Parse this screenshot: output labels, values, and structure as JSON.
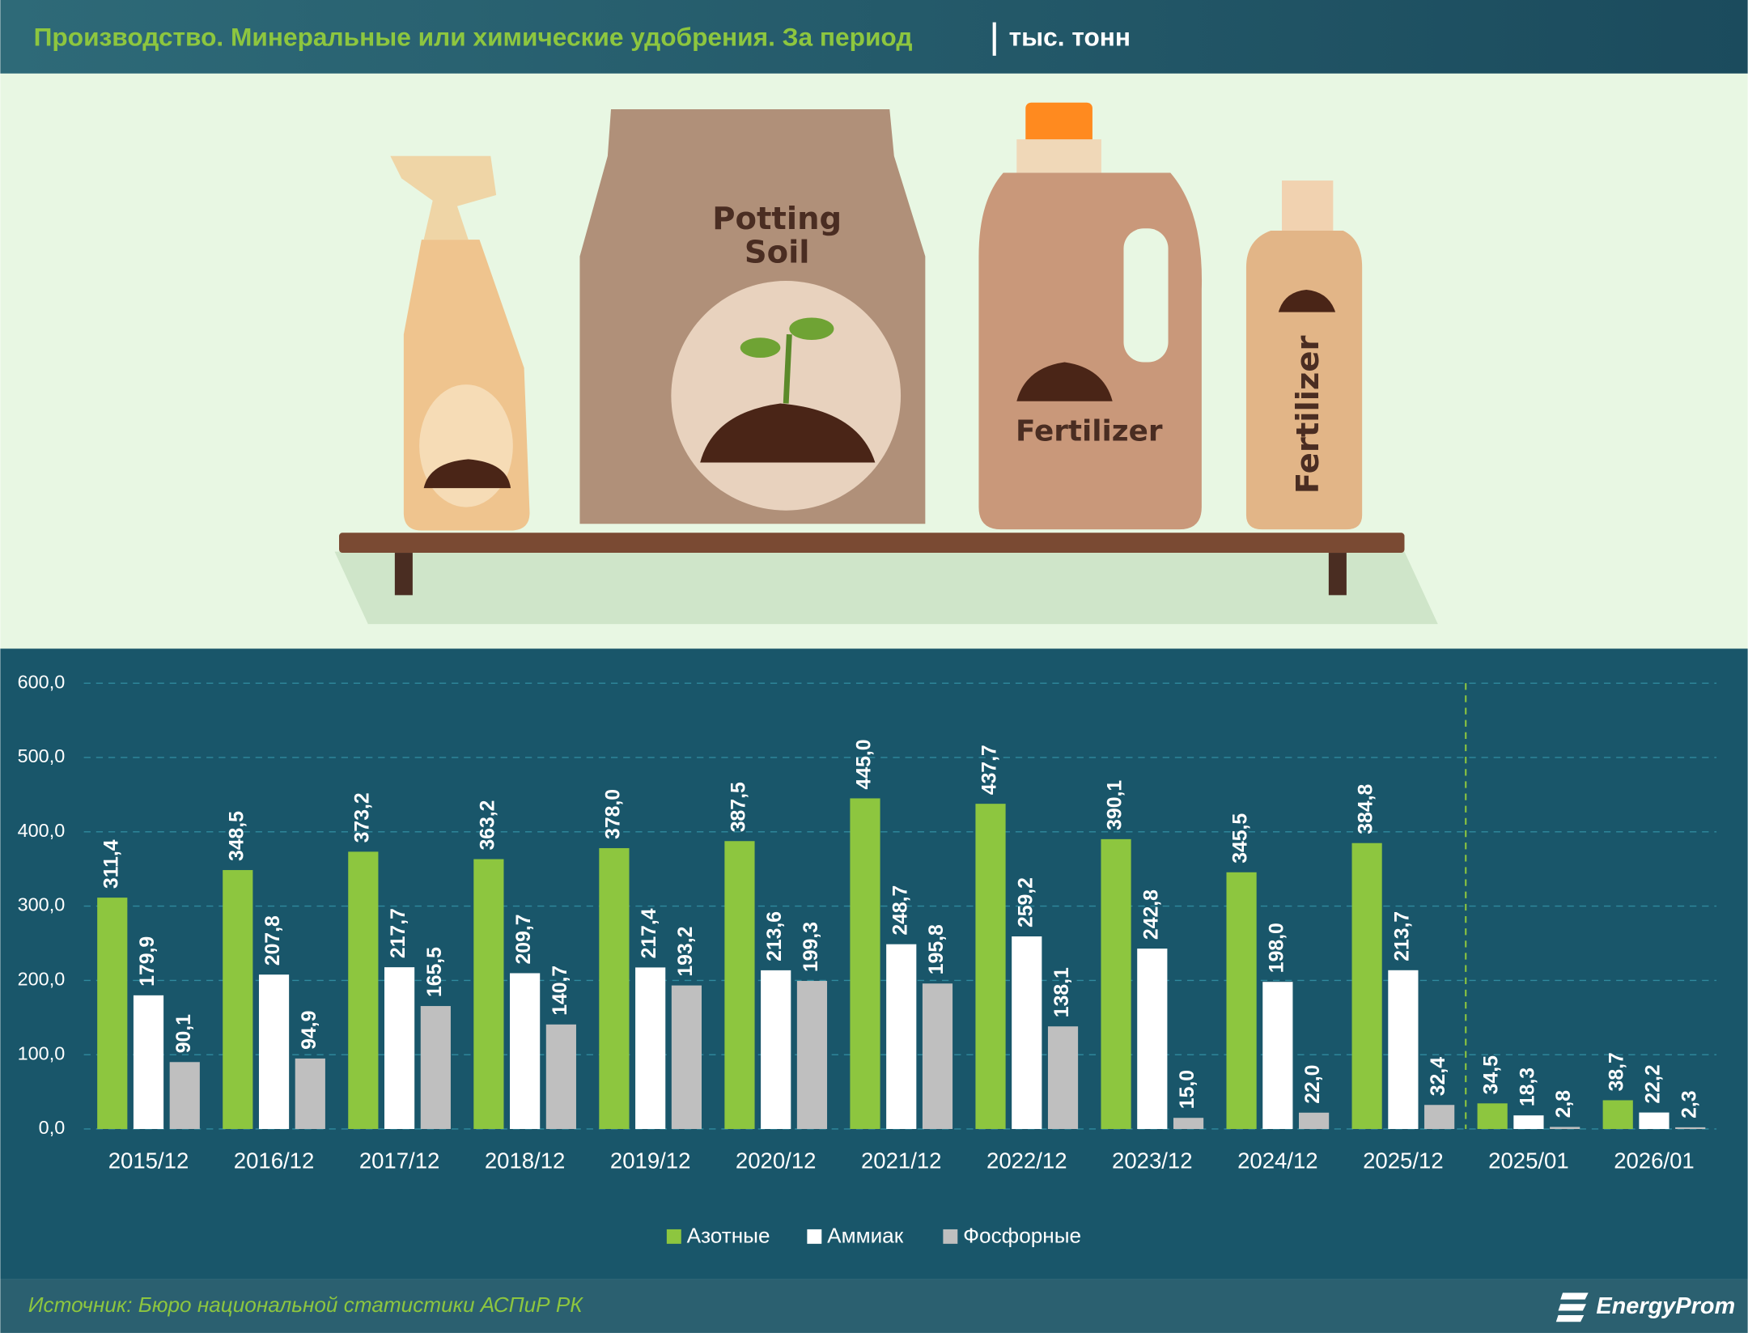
{
  "chart_data": {
    "type": "bar",
    "title": "Производство. Минеральные или химические удобрения. За период",
    "unit": "тыс. тонн",
    "categories": [
      "2015/12",
      "2016/12",
      "2017/12",
      "2018/12",
      "2019/12",
      "2020/12",
      "2021/12",
      "2022/12",
      "2023/12",
      "2024/12",
      "2025/12",
      "2025/01",
      "2026/01"
    ],
    "series": [
      {
        "name": "Азотные",
        "color": "#8dc63f",
        "values": [
          311.4,
          348.5,
          373.2,
          363.2,
          378.0,
          387.5,
          445.0,
          437.7,
          390.1,
          345.5,
          384.8,
          34.5,
          38.7
        ],
        "value_labels": [
          "311,4",
          "348,5",
          "373,2",
          "363,2",
          "378,0",
          "387,5",
          "445,0",
          "437,7",
          "390,1",
          "345,5",
          "384,8",
          "34,5",
          "38,7"
        ]
      },
      {
        "name": "Аммиак",
        "color": "#ffffff",
        "values": [
          179.9,
          207.8,
          217.7,
          209.7,
          217.4,
          213.6,
          248.7,
          259.2,
          242.8,
          198.0,
          213.7,
          18.3,
          22.2
        ],
        "value_labels": [
          "179,9",
          "207,8",
          "217,7",
          "209,7",
          "217,4",
          "213,6",
          "248,7",
          "259,2",
          "242,8",
          "198,0",
          "213,7",
          "18,3",
          "22,2"
        ]
      },
      {
        "name": "Фосфорные",
        "color": "#bfbfbf",
        "values": [
          90.1,
          94.9,
          165.5,
          140.7,
          193.2,
          199.3,
          195.8,
          138.1,
          15.0,
          22.0,
          32.4,
          2.8,
          2.3
        ],
        "value_labels": [
          "90,1",
          "94,9",
          "165,5",
          "140,7",
          "193,2",
          "199,3",
          "195,8",
          "138,1",
          "15,0",
          "22,0",
          "32,4",
          "2,8",
          "2,3"
        ]
      }
    ],
    "ylim": [
      0,
      600
    ],
    "yticks": [
      {
        "value": 0,
        "label": "0,0"
      },
      {
        "value": 100,
        "label": "100,0"
      },
      {
        "value": 200,
        "label": "200,0"
      },
      {
        "value": 300,
        "label": "300,0"
      },
      {
        "value": 400,
        "label": "400,0"
      },
      {
        "value": 500,
        "label": "500,0"
      },
      {
        "value": 600,
        "label": "600,0"
      }
    ],
    "grid": true,
    "legend": "bottom"
  },
  "illustration": {
    "bag": [
      "Potting",
      "Soil"
    ],
    "jug": "Fertilizer",
    "bottle": "Fertilizer"
  },
  "footer": {
    "source": "Источник: Бюро национальной статистики АСПиР РК",
    "brand": "EnergyProm"
  }
}
